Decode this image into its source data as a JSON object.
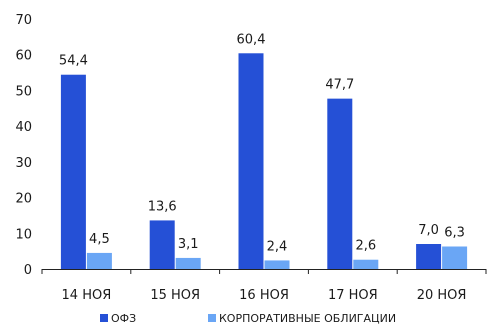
{
  "chart_data": {
    "type": "bar",
    "categories": [
      "14 НОЯ",
      "15 НОЯ",
      "16 НОЯ",
      "17 НОЯ",
      "20 НОЯ"
    ],
    "series": [
      {
        "name": "ОФЗ",
        "color": "#2550d6",
        "values": [
          54.4,
          13.6,
          60.4,
          47.7,
          7.0
        ],
        "labels": [
          "54,4",
          "13,6",
          "60,4",
          "47,7",
          "7,0"
        ]
      },
      {
        "name": "КОРПОРАТИВНЫЕ ОБЛИГАЦИИ",
        "color": "#6aa6f5",
        "values": [
          4.5,
          3.1,
          2.4,
          2.6,
          6.3
        ],
        "labels": [
          "4,5",
          "3,1",
          "2,4",
          "2,6",
          "6,3"
        ]
      }
    ],
    "title": "",
    "xlabel": "",
    "ylabel": "",
    "ylim": [
      0,
      70
    ],
    "yticks": [
      0,
      10,
      20,
      30,
      40,
      50,
      60,
      70
    ],
    "grid": false,
    "legend_position": "bottom"
  }
}
